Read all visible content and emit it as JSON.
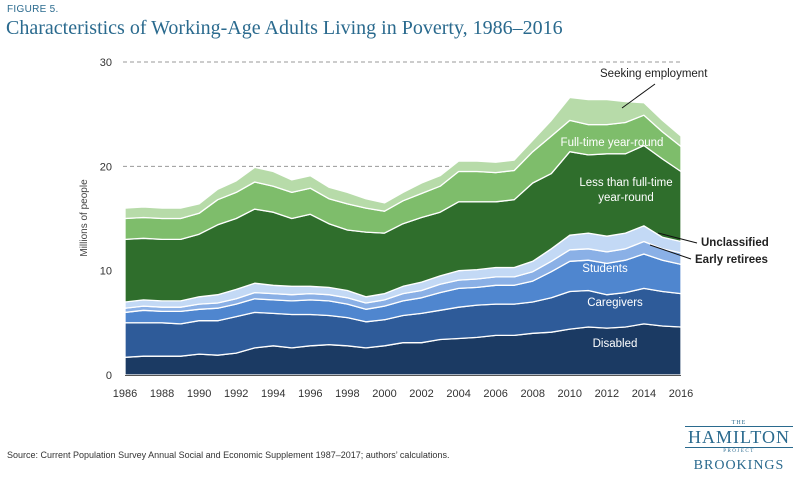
{
  "figure_label": "FIGURE 5.",
  "title": "Characteristics of Working-Age Adults Living in Poverty, 1986–2016",
  "source": "Source: Current Population Survey Annual Social and Economic Supplement 1987–2017; authors’ calculations.",
  "logo": {
    "the": "THE",
    "hamilton": "HAMILTON",
    "project": "PROJECT",
    "brookings": "BROOKINGS"
  },
  "chart_data": {
    "type": "area",
    "stacked": true,
    "ylabel": "Millions of people",
    "xlabel": "",
    "ylim": [
      0,
      30
    ],
    "yticks": [
      0,
      10,
      20,
      30
    ],
    "xlim": [
      1986,
      2016
    ],
    "xticks": [
      1986,
      1988,
      1990,
      1992,
      1994,
      1996,
      1998,
      2000,
      2002,
      2004,
      2006,
      2008,
      2010,
      2012,
      2014,
      2016
    ],
    "gridlines": "dashed at 20 and 30",
    "x": [
      1986,
      1987,
      1988,
      1989,
      1990,
      1991,
      1992,
      1993,
      1994,
      1995,
      1996,
      1997,
      1998,
      1999,
      2000,
      2001,
      2002,
      2003,
      2004,
      2005,
      2006,
      2007,
      2008,
      2009,
      2010,
      2011,
      2012,
      2013,
      2014,
      2015,
      2016
    ],
    "series": [
      {
        "name": "Disabled",
        "color": "#1b3a63",
        "values": [
          1.7,
          1.8,
          1.8,
          1.8,
          2.0,
          1.9,
          2.1,
          2.6,
          2.8,
          2.6,
          2.8,
          2.9,
          2.8,
          2.6,
          2.8,
          3.1,
          3.1,
          3.4,
          3.5,
          3.6,
          3.8,
          3.8,
          4.0,
          4.1,
          4.4,
          4.6,
          4.5,
          4.6,
          4.9,
          4.7,
          4.6
        ]
      },
      {
        "name": "Caregivers",
        "color": "#2e5b99",
        "values": [
          3.3,
          3.2,
          3.2,
          3.1,
          3.2,
          3.3,
          3.5,
          3.4,
          3.1,
          3.2,
          3.0,
          2.8,
          2.7,
          2.5,
          2.5,
          2.6,
          2.8,
          2.8,
          3.0,
          3.1,
          3.0,
          3.0,
          3.0,
          3.3,
          3.6,
          3.5,
          3.2,
          3.3,
          3.4,
          3.3,
          3.2
        ]
      },
      {
        "name": "Students",
        "color": "#4f86cf",
        "values": [
          1.0,
          1.2,
          1.1,
          1.2,
          1.1,
          1.2,
          1.2,
          1.3,
          1.3,
          1.3,
          1.4,
          1.4,
          1.3,
          1.2,
          1.3,
          1.4,
          1.5,
          1.7,
          1.8,
          1.7,
          1.8,
          1.8,
          2.0,
          2.5,
          2.9,
          2.9,
          3.0,
          3.1,
          3.3,
          3.0,
          2.8
        ]
      },
      {
        "name": "Early retirees",
        "color": "#8ab0e6",
        "values": [
          0.4,
          0.4,
          0.4,
          0.4,
          0.5,
          0.5,
          0.5,
          0.6,
          0.6,
          0.6,
          0.6,
          0.6,
          0.6,
          0.6,
          0.6,
          0.7,
          0.7,
          0.8,
          0.8,
          0.8,
          0.8,
          0.8,
          0.9,
          1.0,
          1.1,
          1.1,
          1.1,
          1.1,
          1.2,
          1.1,
          1.1
        ]
      },
      {
        "name": "Unclassified",
        "color": "#c3d9f5",
        "values": [
          0.6,
          0.6,
          0.6,
          0.6,
          0.7,
          0.8,
          0.9,
          0.9,
          0.8,
          0.8,
          0.7,
          0.7,
          0.7,
          0.6,
          0.6,
          0.7,
          0.8,
          0.8,
          0.9,
          0.9,
          0.9,
          0.9,
          1.0,
          1.2,
          1.4,
          1.5,
          1.5,
          1.5,
          1.5,
          1.1,
          1.1
        ]
      },
      {
        "name": "Less than full-time year-round",
        "color": "#2f6e2c",
        "values": [
          6.0,
          5.9,
          5.9,
          5.9,
          6.0,
          6.7,
          6.8,
          7.1,
          7.0,
          6.5,
          6.9,
          6.1,
          5.8,
          6.2,
          5.8,
          6.0,
          6.2,
          6.1,
          6.6,
          6.5,
          6.3,
          6.5,
          7.5,
          7.2,
          8.0,
          7.5,
          7.9,
          7.6,
          7.7,
          7.5,
          6.7
        ]
      },
      {
        "name": "Full-time year-round",
        "color": "#7ebd6b",
        "values": [
          2.0,
          2.0,
          2.0,
          2.0,
          2.0,
          2.4,
          2.5,
          2.6,
          2.5,
          2.5,
          2.5,
          2.4,
          2.5,
          2.3,
          2.1,
          2.2,
          2.3,
          2.5,
          2.9,
          2.9,
          2.8,
          2.8,
          3.0,
          3.6,
          3.0,
          2.9,
          2.8,
          3.0,
          2.9,
          2.6,
          2.4
        ]
      },
      {
        "name": "Seeking employment",
        "color": "#b7dba9",
        "values": [
          1.0,
          1.0,
          1.0,
          1.0,
          0.9,
          1.0,
          1.1,
          1.4,
          1.4,
          1.2,
          1.2,
          1.1,
          1.1,
          0.9,
          0.8,
          0.8,
          1.0,
          1.0,
          1.0,
          1.0,
          1.0,
          1.0,
          1.1,
          1.5,
          2.2,
          2.4,
          2.4,
          2.0,
          1.2,
          1.1,
          1.0
        ]
      }
    ],
    "labels": [
      {
        "text": "Seeking employment",
        "series": "Seeking employment"
      },
      {
        "text": "Full-time year-round",
        "series": "Full-time year-round"
      },
      {
        "text": "Less than full-time",
        "series": "Less than full-time year-round"
      },
      {
        "text": "year-round",
        "series": "Less than full-time year-round"
      },
      {
        "text": "Unclassified",
        "series": "Unclassified"
      },
      {
        "text": "Early retirees",
        "series": "Early retirees"
      },
      {
        "text": "Students",
        "series": "Students"
      },
      {
        "text": "Caregivers",
        "series": "Caregivers"
      },
      {
        "text": "Disabled",
        "series": "Disabled"
      }
    ]
  }
}
